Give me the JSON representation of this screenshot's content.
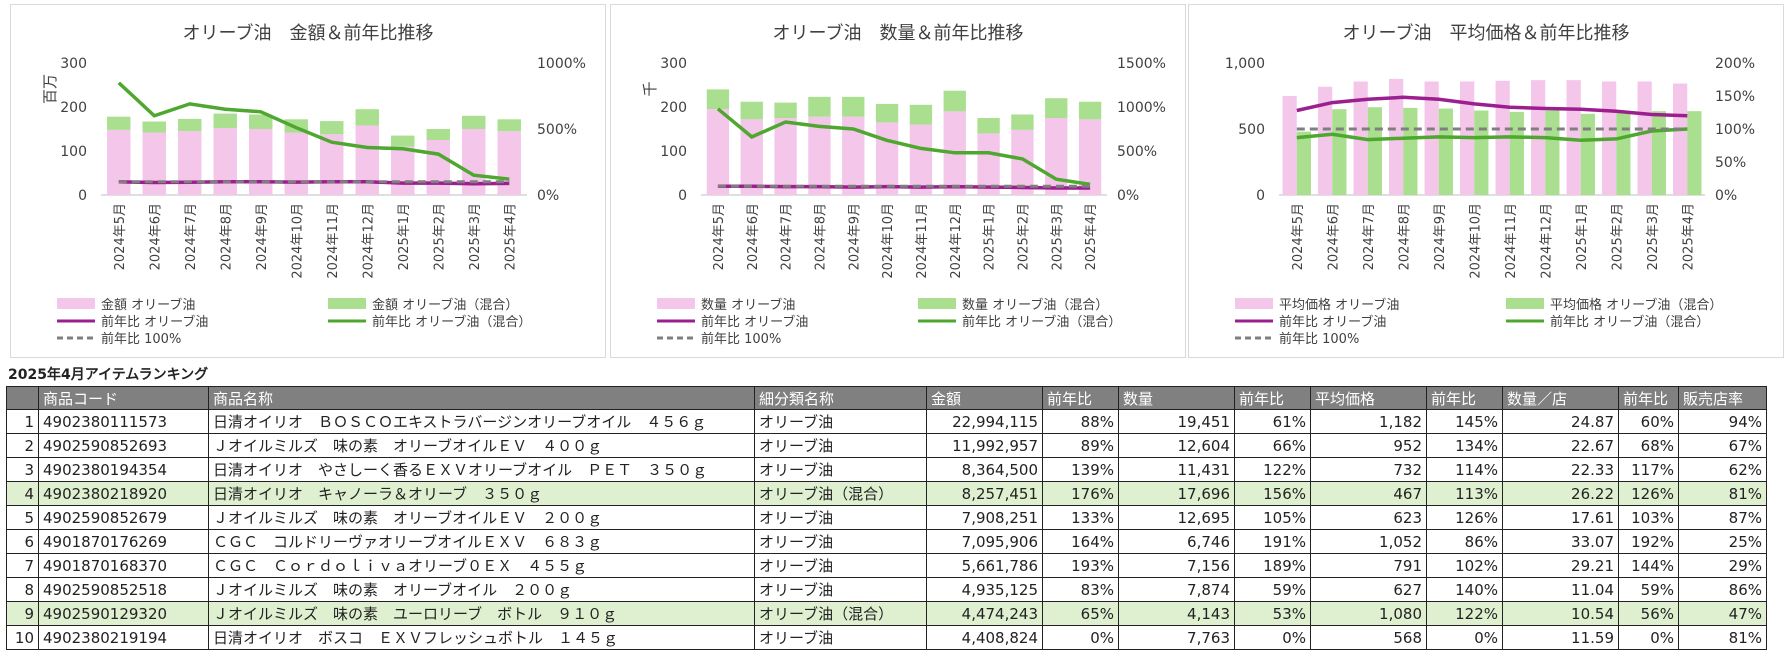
{
  "chart_data": [
    {
      "type": "bar",
      "title": "オリーブ油　金額＆前年比推移",
      "y_unit_label": "百万",
      "categories": [
        "2024年5月",
        "2024年6月",
        "2024年7月",
        "2024年8月",
        "2024年9月",
        "2024年10月",
        "2024年11月",
        "2024年12月",
        "2025年1月",
        "2025年2月",
        "2025年3月",
        "2025年4月"
      ],
      "ylim": [
        0,
        300
      ],
      "yticks": [
        "0",
        "100",
        "200",
        "300"
      ],
      "y2lim": [
        0,
        10
      ],
      "y2ticks": [
        "0%",
        "500%",
        "1000%"
      ],
      "series": [
        {
          "name": "金額 オリーブ油",
          "kind": "bar",
          "axis": "left",
          "color": "#f4c6ea",
          "values": [
            148,
            142,
            145,
            152,
            150,
            142,
            138,
            158,
            110,
            125,
            150,
            145
          ]
        },
        {
          "name": "金額 オリーブ油（混合）",
          "kind": "bar",
          "axis": "left",
          "color": "#a9df8f",
          "values": [
            30,
            25,
            28,
            33,
            33,
            30,
            30,
            37,
            25,
            25,
            30,
            27
          ]
        },
        {
          "name": "前年比 オリーブ油",
          "kind": "line",
          "axis": "right",
          "color": "#9b1f8f",
          "values": [
            1.0,
            0.95,
            0.96,
            1.0,
            1.0,
            0.98,
            1.0,
            1.0,
            0.9,
            0.9,
            0.85,
            0.88
          ]
        },
        {
          "name": "前年比 オリーブ油（混合）",
          "kind": "line",
          "axis": "right",
          "color": "#4ea72e",
          "values": [
            8.5,
            6.0,
            6.9,
            6.5,
            6.3,
            5.1,
            4.0,
            3.6,
            3.5,
            3.1,
            1.5,
            1.2
          ]
        },
        {
          "name": "前年比 100%",
          "kind": "dashed",
          "axis": "right",
          "color": "#7f7f7f",
          "values": [
            1,
            1,
            1,
            1,
            1,
            1,
            1,
            1,
            1,
            1,
            1,
            1
          ]
        }
      ]
    },
    {
      "type": "bar",
      "title": "オリーブ油　数量＆前年比推移",
      "y_unit_label": "千",
      "categories": [
        "2024年5月",
        "2024年6月",
        "2024年7月",
        "2024年8月",
        "2024年9月",
        "2024年10月",
        "2024年11月",
        "2024年12月",
        "2025年1月",
        "2025年2月",
        "2025年3月",
        "2025年4月"
      ],
      "ylim": [
        0,
        300
      ],
      "yticks": [
        "0",
        "100",
        "200",
        "300"
      ],
      "y2lim": [
        0,
        15
      ],
      "y2ticks": [
        "0%",
        "500%",
        "1000%",
        "1500%"
      ],
      "series": [
        {
          "name": "数量 オリーブ油",
          "kind": "bar",
          "axis": "left",
          "color": "#f4c6ea",
          "values": [
            195,
            172,
            175,
            178,
            178,
            165,
            160,
            190,
            140,
            148,
            175,
            172
          ]
        },
        {
          "name": "数量 オリーブ油（混合）",
          "kind": "bar",
          "axis": "left",
          "color": "#a9df8f",
          "values": [
            45,
            40,
            35,
            45,
            45,
            42,
            45,
            47,
            35,
            35,
            45,
            40
          ]
        },
        {
          "name": "前年比 オリーブ油",
          "kind": "line",
          "axis": "right",
          "color": "#9b1f8f",
          "values": [
            1.0,
            1.0,
            0.95,
            0.95,
            0.9,
            0.95,
            0.9,
            0.95,
            0.9,
            0.85,
            0.8,
            0.8
          ]
        },
        {
          "name": "前年比 オリーブ油（混合）",
          "kind": "line",
          "axis": "right",
          "color": "#4ea72e",
          "values": [
            9.8,
            6.6,
            8.3,
            7.8,
            7.5,
            6.2,
            5.3,
            4.8,
            4.8,
            4.1,
            1.8,
            1.2
          ]
        },
        {
          "name": "前年比 100%",
          "kind": "dashed",
          "axis": "right",
          "color": "#7f7f7f",
          "values": [
            1,
            1,
            1,
            1,
            1,
            1,
            1,
            1,
            1,
            1,
            1,
            1
          ]
        }
      ]
    },
    {
      "type": "bar",
      "title": "オリーブ油　平均価格＆前年比推移",
      "y_unit_label": "",
      "categories": [
        "2024年5月",
        "2024年6月",
        "2024年7月",
        "2024年8月",
        "2024年9月",
        "2024年10月",
        "2024年11月",
        "2024年12月",
        "2025年1月",
        "2025年2月",
        "2025年3月",
        "2025年4月"
      ],
      "ylim": [
        0,
        1000
      ],
      "yticks": [
        "0",
        "500",
        "1,000"
      ],
      "y2lim": [
        0,
        2
      ],
      "y2ticks": [
        "0%",
        "50%",
        "100%",
        "150%",
        "200%"
      ],
      "series": [
        {
          "name": "平均価格 オリーブ油",
          "kind": "bar",
          "axis": "left",
          "color": "#f4c6ea",
          "values": [
            750,
            820,
            860,
            880,
            860,
            860,
            865,
            870,
            870,
            860,
            860,
            845
          ]
        },
        {
          "name": "平均価格 オリーブ油（混合）",
          "kind": "bar",
          "axis": "left",
          "color": "#a9df8f",
          "values": [
            480,
            650,
            665,
            660,
            655,
            640,
            630,
            640,
            615,
            625,
            635,
            635
          ]
        },
        {
          "name": "前年比 オリーブ油",
          "kind": "line",
          "axis": "right",
          "color": "#9b1f8f",
          "values": [
            1.28,
            1.4,
            1.45,
            1.48,
            1.45,
            1.38,
            1.33,
            1.31,
            1.3,
            1.27,
            1.22,
            1.2
          ]
        },
        {
          "name": "前年比 オリーブ油（混合）",
          "kind": "line",
          "axis": "right",
          "color": "#4ea72e",
          "values": [
            0.87,
            0.92,
            0.84,
            0.86,
            0.88,
            0.87,
            0.88,
            0.87,
            0.83,
            0.85,
            0.97,
            1.0
          ]
        },
        {
          "name": "前年比 100%",
          "kind": "dashed",
          "axis": "right",
          "color": "#7f7f7f",
          "values": [
            1,
            1,
            1,
            1,
            1,
            1,
            1,
            1,
            1,
            1,
            1,
            1
          ]
        }
      ]
    }
  ],
  "ranking": {
    "title": "2025年4月アイテムランキング",
    "headers": [
      "",
      "商品コード",
      "商品名称",
      "細分類名称",
      "金額",
      "前年比",
      "数量",
      "前年比",
      "平均価格",
      "前年比",
      "数量／店",
      "前年比",
      "販売店率"
    ],
    "rows": [
      [
        "1",
        "4902380111573",
        "日清オイリオ　ＢＯＳＣＯエキストラバージンオリーブオイル　４５６ｇ",
        "オリーブ油",
        "22,994,115",
        "88%",
        "19,451",
        "61%",
        "1,182",
        "145%",
        "24.87",
        "60%",
        "94%"
      ],
      [
        "2",
        "4902590852693",
        "Ｊオイルミルズ　味の素　オリーブオイルＥＶ　４００ｇ",
        "オリーブ油",
        "11,992,957",
        "89%",
        "12,604",
        "66%",
        "952",
        "134%",
        "22.67",
        "68%",
        "67%"
      ],
      [
        "3",
        "4902380194354",
        "日清オイリオ　やさしーく香るＥＸＶオリーブオイル　ＰＥＴ　３５０ｇ",
        "オリーブ油",
        "8,364,500",
        "139%",
        "11,431",
        "122%",
        "732",
        "114%",
        "22.33",
        "117%",
        "62%"
      ],
      [
        "4",
        "4902380218920",
        "日清オイリオ　キャノーラ＆オリーブ　３５０ｇ",
        "オリーブ油（混合）",
        "8,257,451",
        "176%",
        "17,696",
        "156%",
        "467",
        "113%",
        "26.22",
        "126%",
        "81%"
      ],
      [
        "5",
        "4902590852679",
        "Ｊオイルミルズ　味の素　オリーブオイルＥＶ　２００ｇ",
        "オリーブ油",
        "7,908,251",
        "133%",
        "12,695",
        "105%",
        "623",
        "126%",
        "17.61",
        "103%",
        "87%"
      ],
      [
        "6",
        "4901870176269",
        "ＣＧＣ　コルドリーヴァオリーブオイルＥＸＶ　６８３ｇ",
        "オリーブ油",
        "7,095,906",
        "164%",
        "6,746",
        "191%",
        "1,052",
        "86%",
        "33.07",
        "192%",
        "25%"
      ],
      [
        "7",
        "4901870168370",
        "ＣＧＣ　Ｃｏｒｄｏｌｉｖａオリーブ０ＥＸ　４５５ｇ",
        "オリーブ油",
        "5,661,786",
        "193%",
        "7,156",
        "189%",
        "791",
        "102%",
        "29.21",
        "144%",
        "29%"
      ],
      [
        "8",
        "4902590852518",
        "Ｊオイルミルズ　味の素　オリーブオイル　２００ｇ",
        "オリーブ油",
        "4,935,125",
        "83%",
        "7,874",
        "59%",
        "627",
        "140%",
        "11.04",
        "59%",
        "86%"
      ],
      [
        "9",
        "4902590129320",
        "Ｊオイルミルズ　味の素　ユーロリーブ　ボトル　９１０ｇ",
        "オリーブ油（混合）",
        "4,474,243",
        "65%",
        "4,143",
        "53%",
        "1,080",
        "122%",
        "10.54",
        "56%",
        "47%"
      ],
      [
        "10",
        "4902380219194",
        "日清オイリオ　ボスコ　ＥＸＶフレッシュボトル　１４５ｇ",
        "オリーブ油",
        "4,408,824",
        "0%",
        "7,763",
        "0%",
        "568",
        "0%",
        "11.59",
        "0%",
        "81%"
      ]
    ]
  }
}
